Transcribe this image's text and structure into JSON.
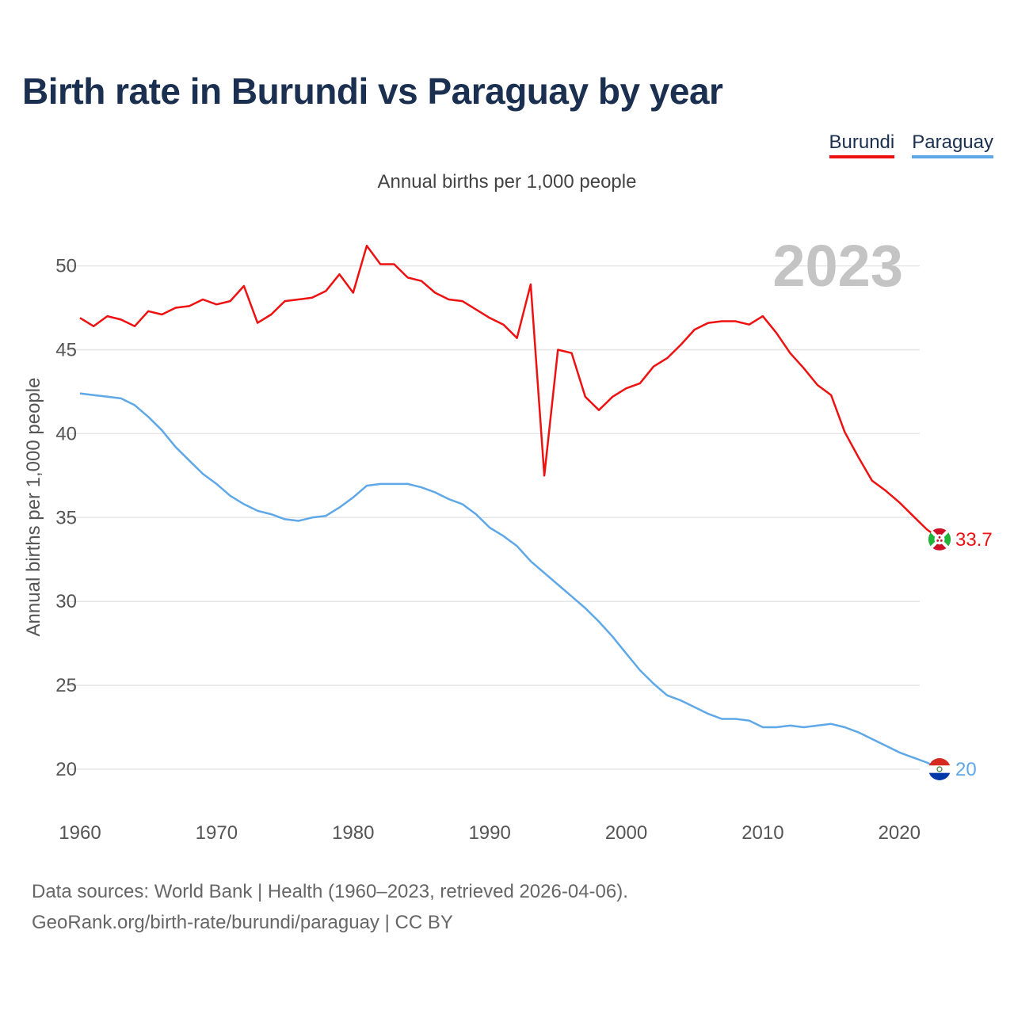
{
  "title": "Birth rate in Burundi vs Paraguay by year",
  "subtitle": "Annual births per 1,000 people",
  "year_label": "2023",
  "legend": [
    {
      "name": "Burundi",
      "color": "#ee1111"
    },
    {
      "name": "Paraguay",
      "color": "#5ea8e8"
    }
  ],
  "source_line1": "Data sources: World Bank | Health (1960–2023, retrieved 2026-04-06).",
  "source_line2": "GeoRank.org/birth-rate/burundi/paraguay | CC BY",
  "chart_data": {
    "type": "line",
    "title": "Birth rate in Burundi vs Paraguay by year",
    "ylabel": "Annual births per 1,000 people",
    "xlabel": "",
    "xlim": [
      1960,
      2023
    ],
    "ylim": [
      18,
      52.5
    ],
    "grid": true,
    "x_ticks": [
      1960,
      1970,
      1980,
      1990,
      2000,
      2010,
      2020
    ],
    "y_ticks": [
      20,
      25,
      30,
      35,
      40,
      45,
      50
    ],
    "x": [
      1960,
      1961,
      1962,
      1963,
      1964,
      1965,
      1966,
      1967,
      1968,
      1969,
      1970,
      1971,
      1972,
      1973,
      1974,
      1975,
      1976,
      1977,
      1978,
      1979,
      1980,
      1981,
      1982,
      1983,
      1984,
      1985,
      1986,
      1987,
      1988,
      1989,
      1990,
      1991,
      1992,
      1993,
      1994,
      1995,
      1996,
      1997,
      1998,
      1999,
      2000,
      2001,
      2002,
      2003,
      2004,
      2005,
      2006,
      2007,
      2008,
      2009,
      2010,
      2011,
      2012,
      2013,
      2014,
      2015,
      2016,
      2017,
      2018,
      2019,
      2020,
      2021,
      2022,
      2023
    ],
    "series": [
      {
        "name": "Burundi",
        "color": "#ee1111",
        "end_label": "33.7",
        "values": [
          46.9,
          46.4,
          47.0,
          46.8,
          46.4,
          47.3,
          47.1,
          47.5,
          47.6,
          48.0,
          47.7,
          47.9,
          48.8,
          46.6,
          47.1,
          47.9,
          48.0,
          48.1,
          48.5,
          49.5,
          48.4,
          51.2,
          50.1,
          50.1,
          49.3,
          49.1,
          48.4,
          48.0,
          47.9,
          47.4,
          46.9,
          46.5,
          45.7,
          48.9,
          37.5,
          45.0,
          44.8,
          42.2,
          41.4,
          42.2,
          42.7,
          43.0,
          44.0,
          44.5,
          45.3,
          46.2,
          46.6,
          46.7,
          46.7,
          46.5,
          47.0,
          46.0,
          44.8,
          43.9,
          42.9,
          42.3,
          40.1,
          38.6,
          37.2,
          36.6,
          35.9,
          35.1,
          34.3,
          33.7
        ]
      },
      {
        "name": "Paraguay",
        "color": "#5ea8e8",
        "end_label": "20",
        "values": [
          42.4,
          42.3,
          42.2,
          42.1,
          41.7,
          41.0,
          40.2,
          39.2,
          38.4,
          37.6,
          37.0,
          36.3,
          35.8,
          35.4,
          35.2,
          34.9,
          34.8,
          35.0,
          35.1,
          35.6,
          36.2,
          36.9,
          37.0,
          37.0,
          37.0,
          36.8,
          36.5,
          36.1,
          35.8,
          35.2,
          34.4,
          33.9,
          33.3,
          32.4,
          31.7,
          31.0,
          30.3,
          29.6,
          28.8,
          27.9,
          26.9,
          25.9,
          25.1,
          24.4,
          24.1,
          23.7,
          23.3,
          23.0,
          23.0,
          22.9,
          22.5,
          22.5,
          22.6,
          22.5,
          22.6,
          22.7,
          22.5,
          22.2,
          21.8,
          21.4,
          21.0,
          20.7,
          20.4,
          20.0
        ]
      }
    ]
  }
}
